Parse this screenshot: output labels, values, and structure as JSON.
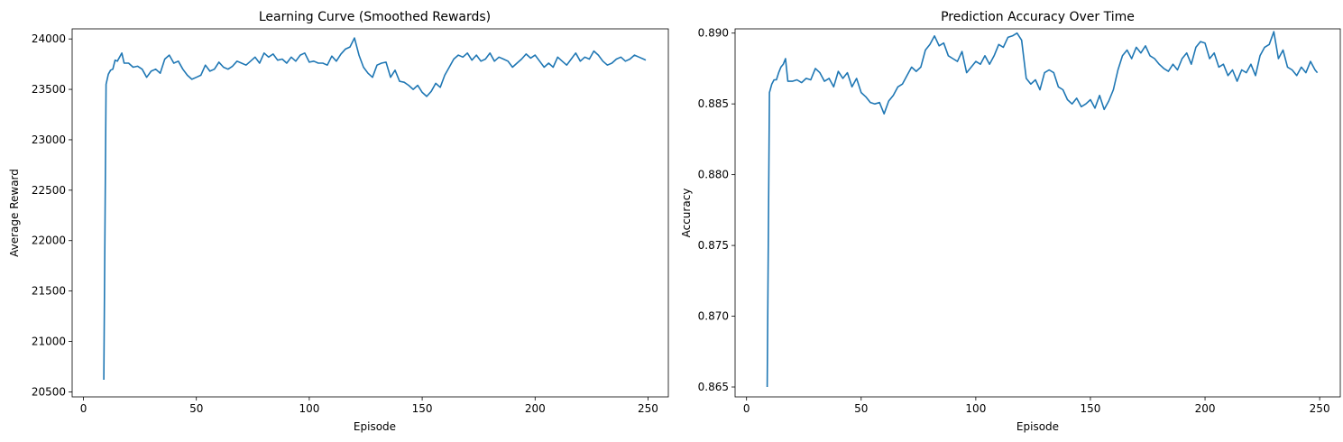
{
  "colors": {
    "line": "#1f77b4",
    "axes": "#000000",
    "background": "#ffffff"
  },
  "chart_data": [
    {
      "type": "line",
      "title": "Learning Curve (Smoothed Rewards)",
      "xlabel": "Episode",
      "ylabel": "Average Reward",
      "xlim": [
        -5,
        259
      ],
      "ylim": [
        20450,
        24100
      ],
      "xticks": [
        0,
        50,
        100,
        150,
        200,
        250
      ],
      "xtick_labels": [
        "0",
        "50",
        "100",
        "150",
        "200",
        "250"
      ],
      "yticks": [
        20500,
        21000,
        21500,
        22000,
        22500,
        23000,
        23500,
        24000
      ],
      "ytick_labels": [
        "20500",
        "21000",
        "21500",
        "22000",
        "22500",
        "23000",
        "23500",
        "24000"
      ],
      "grid": false,
      "series": [
        {
          "color": "#1f77b4",
          "x": [
            9,
            10,
            11,
            12,
            13,
            14,
            15,
            16,
            17,
            18,
            20,
            22,
            24,
            26,
            28,
            30,
            32,
            34,
            36,
            38,
            40,
            42,
            44,
            46,
            48,
            50,
            52,
            54,
            56,
            58,
            60,
            62,
            64,
            66,
            68,
            70,
            72,
            74,
            76,
            78,
            80,
            82,
            84,
            86,
            88,
            90,
            92,
            94,
            96,
            98,
            100,
            102,
            104,
            106,
            108,
            110,
            112,
            114,
            116,
            118,
            120,
            122,
            124,
            126,
            128,
            130,
            132,
            134,
            136,
            138,
            140,
            142,
            144,
            146,
            148,
            150,
            152,
            154,
            156,
            158,
            160,
            162,
            164,
            166,
            168,
            170,
            172,
            174,
            176,
            178,
            180,
            182,
            184,
            186,
            188,
            190,
            192,
            194,
            196,
            198,
            200,
            202,
            204,
            206,
            208,
            210,
            212,
            214,
            216,
            218,
            220,
            222,
            224,
            226,
            228,
            230,
            232,
            234,
            236,
            238,
            240,
            242,
            244,
            246,
            248,
            249
          ],
          "values": [
            20620,
            23550,
            23650,
            23690,
            23700,
            23790,
            23780,
            23820,
            23860,
            23760,
            23760,
            23720,
            23730,
            23700,
            23620,
            23680,
            23700,
            23660,
            23800,
            23840,
            23760,
            23780,
            23700,
            23640,
            23600,
            23620,
            23640,
            23740,
            23680,
            23700,
            23770,
            23720,
            23700,
            23730,
            23780,
            23760,
            23740,
            23780,
            23820,
            23760,
            23860,
            23820,
            23850,
            23790,
            23800,
            23760,
            23820,
            23780,
            23840,
            23860,
            23770,
            23780,
            23760,
            23760,
            23740,
            23830,
            23780,
            23850,
            23900,
            23920,
            24010,
            23840,
            23720,
            23660,
            23620,
            23740,
            23760,
            23770,
            23620,
            23690,
            23580,
            23570,
            23540,
            23500,
            23540,
            23470,
            23430,
            23480,
            23560,
            23520,
            23640,
            23720,
            23800,
            23840,
            23820,
            23860,
            23790,
            23840,
            23780,
            23800,
            23860,
            23780,
            23820,
            23800,
            23780,
            23720,
            23760,
            23800,
            23850,
            23810,
            23840,
            23780,
            23720,
            23760,
            23720,
            23820,
            23780,
            23740,
            23800,
            23860,
            23780,
            23820,
            23800,
            23880,
            23840,
            23780,
            23740,
            23760,
            23800,
            23820,
            23780,
            23800,
            23840,
            23820,
            23800,
            23790
          ]
        }
      ]
    },
    {
      "type": "line",
      "title": "Prediction Accuracy Over Time",
      "xlabel": "Episode",
      "ylabel": "Accuracy",
      "xlim": [
        -5,
        259
      ],
      "ylim": [
        0.8643,
        0.8903
      ],
      "xticks": [
        0,
        50,
        100,
        150,
        200,
        250
      ],
      "xtick_labels": [
        "0",
        "50",
        "100",
        "150",
        "200",
        "250"
      ],
      "yticks": [
        0.865,
        0.87,
        0.875,
        0.88,
        0.885,
        0.89
      ],
      "ytick_labels": [
        "0.865",
        "0.870",
        "0.875",
        "0.880",
        "0.885",
        "0.890"
      ],
      "grid": false,
      "series": [
        {
          "color": "#1f77b4",
          "x": [
            9,
            10,
            11,
            12,
            13,
            14,
            15,
            16,
            17,
            18,
            20,
            22,
            24,
            26,
            28,
            30,
            32,
            34,
            36,
            38,
            40,
            42,
            44,
            46,
            48,
            50,
            52,
            54,
            56,
            58,
            60,
            62,
            64,
            66,
            68,
            70,
            72,
            74,
            76,
            78,
            80,
            82,
            84,
            86,
            88,
            90,
            92,
            94,
            96,
            98,
            100,
            102,
            104,
            106,
            108,
            110,
            112,
            114,
            116,
            118,
            120,
            122,
            124,
            126,
            128,
            130,
            132,
            134,
            136,
            138,
            140,
            142,
            144,
            146,
            148,
            150,
            152,
            154,
            156,
            158,
            160,
            162,
            164,
            166,
            168,
            170,
            172,
            174,
            176,
            178,
            180,
            182,
            184,
            186,
            188,
            190,
            192,
            194,
            196,
            198,
            200,
            202,
            204,
            206,
            208,
            210,
            212,
            214,
            216,
            218,
            220,
            222,
            224,
            226,
            228,
            230,
            232,
            234,
            236,
            238,
            240,
            242,
            244,
            246,
            248,
            249
          ],
          "values": [
            0.865,
            0.8858,
            0.8864,
            0.8867,
            0.8867,
            0.8872,
            0.8876,
            0.8878,
            0.8882,
            0.8866,
            0.8866,
            0.8867,
            0.8865,
            0.8868,
            0.8867,
            0.8875,
            0.8872,
            0.8866,
            0.8868,
            0.8862,
            0.8873,
            0.8868,
            0.8872,
            0.8862,
            0.8868,
            0.8858,
            0.8855,
            0.8851,
            0.885,
            0.8851,
            0.8843,
            0.8852,
            0.8856,
            0.8862,
            0.8864,
            0.887,
            0.8876,
            0.8873,
            0.8876,
            0.8888,
            0.8892,
            0.8898,
            0.8891,
            0.8893,
            0.8884,
            0.8882,
            0.888,
            0.8887,
            0.8872,
            0.8876,
            0.888,
            0.8878,
            0.8884,
            0.8878,
            0.8884,
            0.8892,
            0.889,
            0.8897,
            0.8898,
            0.89,
            0.8895,
            0.8868,
            0.8864,
            0.8867,
            0.886,
            0.8872,
            0.8874,
            0.8872,
            0.8862,
            0.886,
            0.8853,
            0.885,
            0.8854,
            0.8848,
            0.885,
            0.8853,
            0.8847,
            0.8856,
            0.8846,
            0.8852,
            0.886,
            0.8874,
            0.8884,
            0.8888,
            0.8882,
            0.889,
            0.8886,
            0.8891,
            0.8884,
            0.8882,
            0.8878,
            0.8875,
            0.8873,
            0.8878,
            0.8874,
            0.8882,
            0.8886,
            0.8878,
            0.889,
            0.8894,
            0.8893,
            0.8882,
            0.8886,
            0.8876,
            0.8878,
            0.887,
            0.8874,
            0.8866,
            0.8874,
            0.8872,
            0.8878,
            0.887,
            0.8884,
            0.889,
            0.8892,
            0.8901,
            0.8882,
            0.8888,
            0.8876,
            0.8874,
            0.887,
            0.8876,
            0.8872,
            0.888,
            0.8874,
            0.8872
          ]
        }
      ]
    }
  ]
}
